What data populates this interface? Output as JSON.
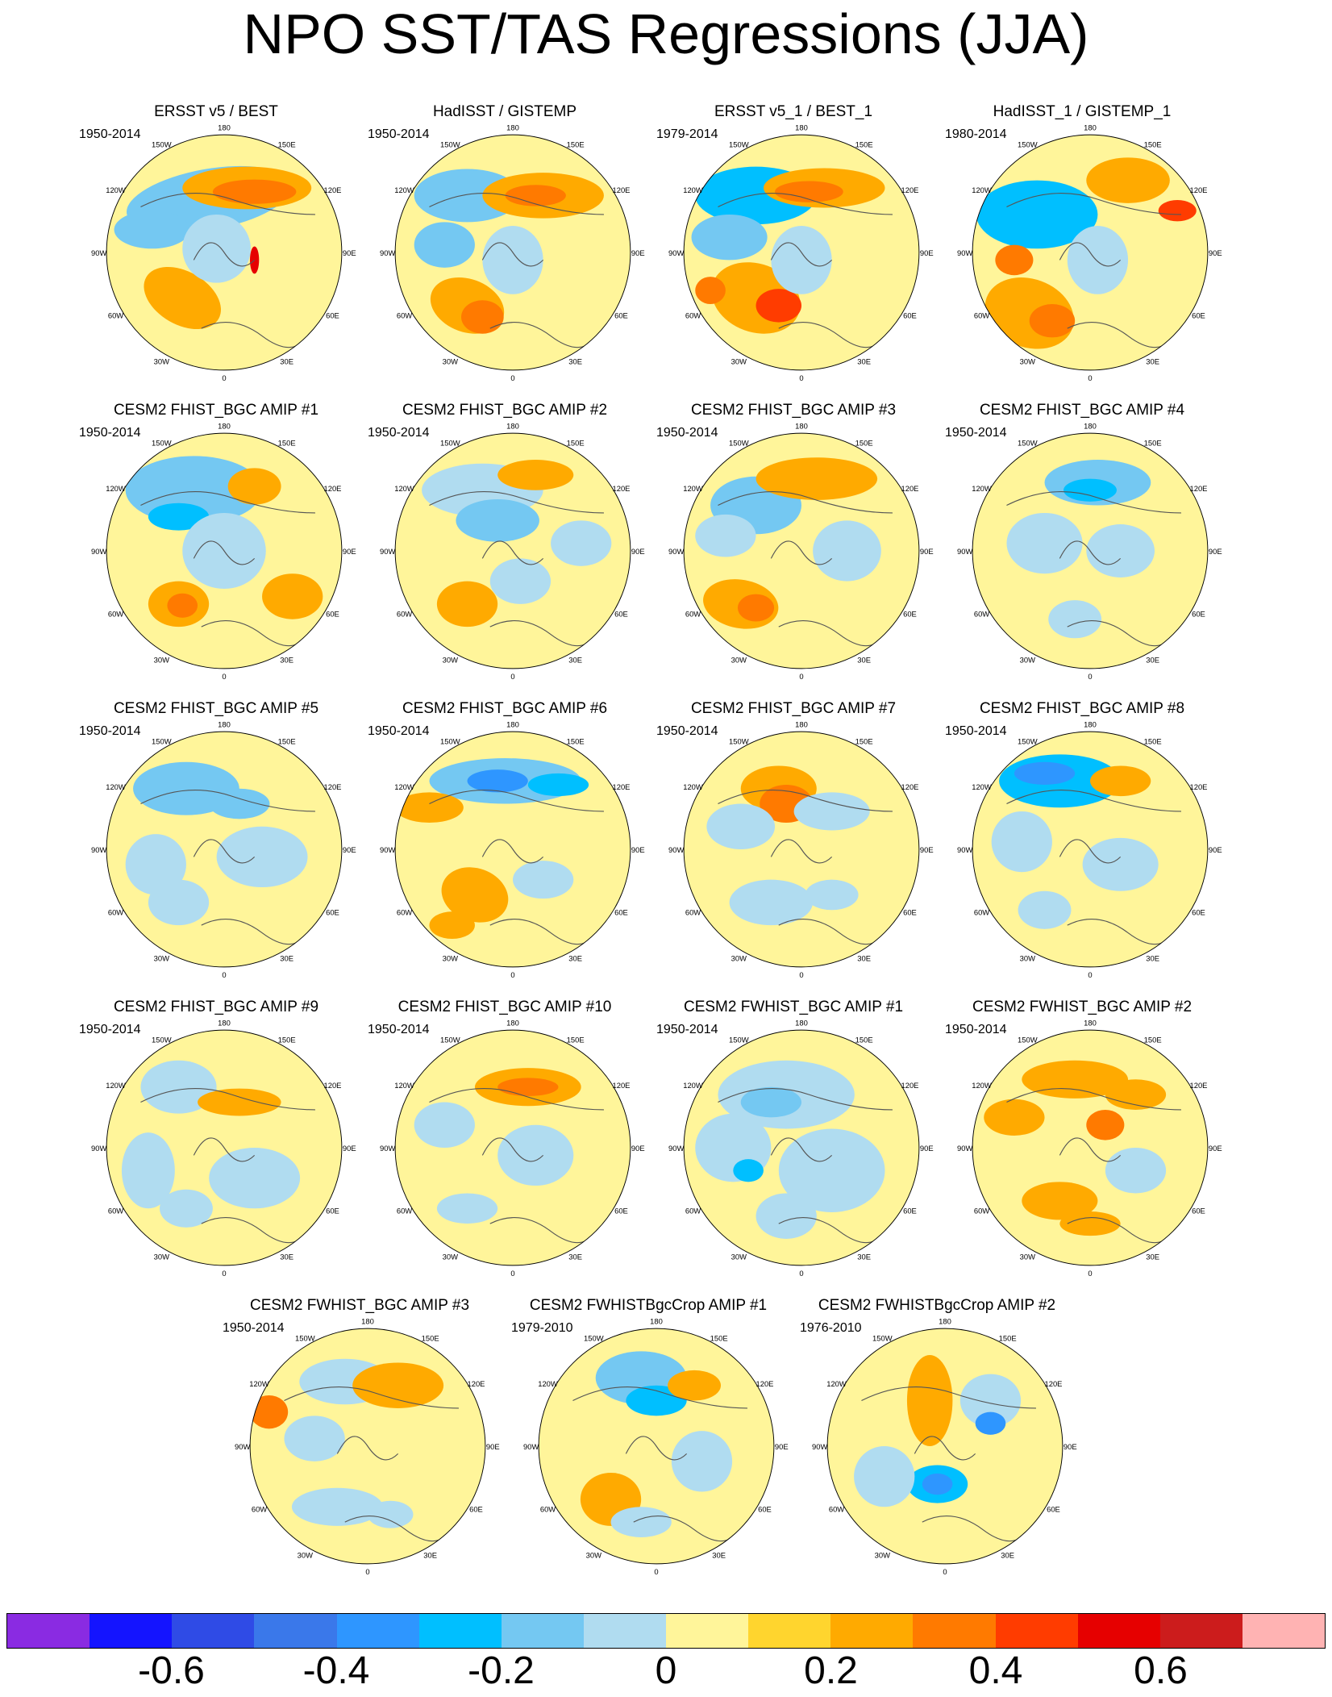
{
  "chart_data": {
    "type": "map-panel-grid",
    "title": "NPO SST/TAS Regressions (JJA)",
    "projection": "north polar stereographic",
    "longitude_labels": [
      "180",
      "150E",
      "120E",
      "90E",
      "60E",
      "30E",
      "0",
      "30W",
      "60W",
      "90W",
      "120W",
      "150W"
    ],
    "panels": [
      {
        "title": "ERSST v5 / BEST",
        "period": "1950-2014",
        "pattern": "obs1"
      },
      {
        "title": "HadISST / GISTEMP",
        "period": "1950-2014",
        "pattern": "obs2"
      },
      {
        "title": "ERSST v5_1 / BEST_1",
        "period": "1979-2014",
        "pattern": "obs3"
      },
      {
        "title": "HadISST_1 / GISTEMP_1",
        "period": "1980-2014",
        "pattern": "obs4"
      },
      {
        "title": "CESM2 FHIST_BGC AMIP #1",
        "period": "1950-2014",
        "pattern": "m1"
      },
      {
        "title": "CESM2 FHIST_BGC AMIP #2",
        "period": "1950-2014",
        "pattern": "m2"
      },
      {
        "title": "CESM2 FHIST_BGC AMIP #3",
        "period": "1950-2014",
        "pattern": "m3"
      },
      {
        "title": "CESM2 FHIST_BGC AMIP #4",
        "period": "1950-2014",
        "pattern": "m4"
      },
      {
        "title": "CESM2 FHIST_BGC AMIP #5",
        "period": "1950-2014",
        "pattern": "m5"
      },
      {
        "title": "CESM2 FHIST_BGC AMIP #6",
        "period": "1950-2014",
        "pattern": "m6"
      },
      {
        "title": "CESM2 FHIST_BGC AMIP #7",
        "period": "1950-2014",
        "pattern": "m7"
      },
      {
        "title": "CESM2 FHIST_BGC AMIP #8",
        "period": "1950-2014",
        "pattern": "m8"
      },
      {
        "title": "CESM2 FHIST_BGC AMIP #9",
        "period": "1950-2014",
        "pattern": "m9"
      },
      {
        "title": "CESM2 FHIST_BGC AMIP #10",
        "period": "1950-2014",
        "pattern": "m10"
      },
      {
        "title": "CESM2 FWHIST_BGC AMIP #1",
        "period": "1950-2014",
        "pattern": "w1"
      },
      {
        "title": "CESM2 FWHIST_BGC AMIP #2",
        "period": "1950-2014",
        "pattern": "w2"
      },
      {
        "title": "CESM2 FWHIST_BGC AMIP #3",
        "period": "1950-2014",
        "pattern": "w3"
      },
      {
        "title": "CESM2 FWHISTBgcCrop AMIP #1",
        "period": "1979-2010",
        "pattern": "c1"
      },
      {
        "title": "CESM2 FWHISTBgcCrop AMIP #2",
        "period": "1976-2010",
        "pattern": "c2"
      }
    ],
    "colorbar": {
      "colors": [
        "#8a2be2",
        "#1414ff",
        "#2f4be6",
        "#3a78ea",
        "#2e96ff",
        "#00bfff",
        "#74c8f2",
        "#b0dcf0",
        "#fff59a",
        "#ffd52e",
        "#ffaa00",
        "#ff7a00",
        "#ff3c00",
        "#e60000",
        "#cc1c1c",
        "#ffb3b3"
      ],
      "tick_labels": [
        "-0.6",
        "-0.4",
        "-0.2",
        "0",
        "0.2",
        "0.4",
        "0.6"
      ],
      "tick_boundaries": [
        2,
        4,
        6,
        8,
        10,
        12,
        14
      ]
    }
  }
}
